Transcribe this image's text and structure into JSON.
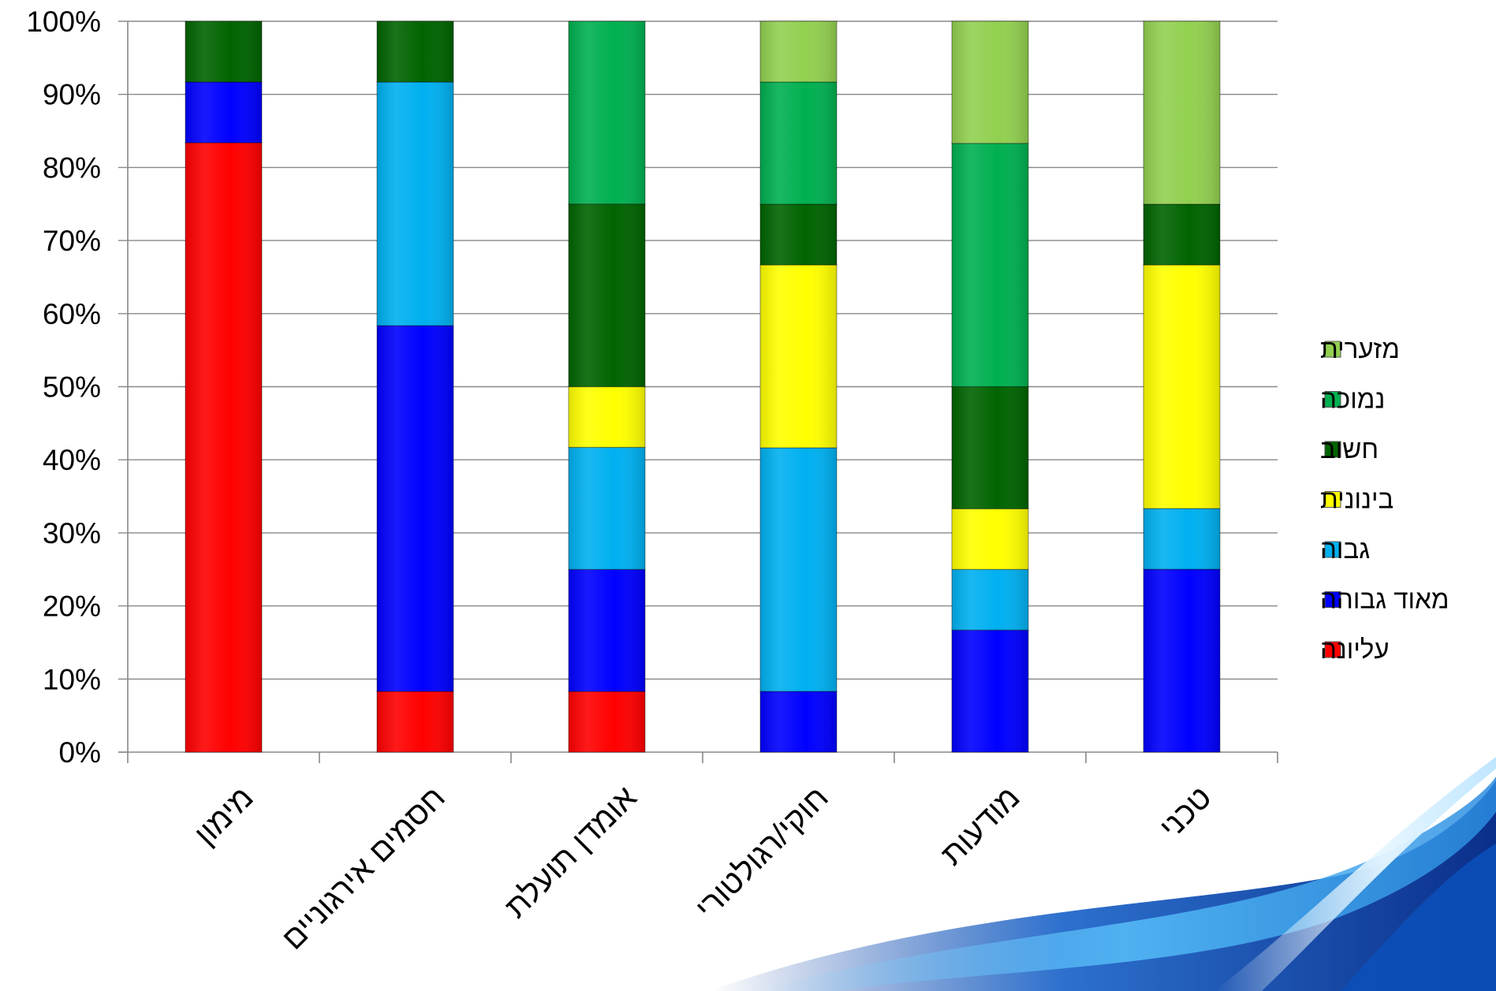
{
  "chart_data": {
    "type": "bar",
    "stacked": true,
    "percent_stacked": true,
    "categories": [
      "מימון",
      "חסמים אירגוניים",
      "אומדן תועלת",
      "חוקי/רגולטורי",
      "מודעות",
      "טכני"
    ],
    "series": [
      {
        "name": "עליונה",
        "color": "#FF0000",
        "values": [
          83.3,
          8.3,
          8.3,
          0,
          0,
          0
        ]
      },
      {
        "name": "מאוד גבוהה",
        "color": "#0000FF",
        "values": [
          8.3,
          50.0,
          16.7,
          8.3,
          16.7,
          25.0
        ]
      },
      {
        "name": "גבוה",
        "color": "#00B0F0",
        "values": [
          0,
          33.3,
          16.7,
          33.3,
          8.3,
          8.3
        ]
      },
      {
        "name": "בינונית",
        "color": "#FFFF00",
        "values": [
          0,
          0,
          8.3,
          25.0,
          8.3,
          33.3
        ]
      },
      {
        "name": "חשוב",
        "color": "#006400",
        "values": [
          8.3,
          8.3,
          25.0,
          8.3,
          16.7,
          8.3
        ]
      },
      {
        "name": "נמוכה",
        "color": "#00B050",
        "values": [
          0,
          0,
          25.0,
          16.7,
          33.3,
          0
        ]
      },
      {
        "name": "מזערית",
        "color": "#92D050",
        "values": [
          0,
          0,
          0,
          8.3,
          16.7,
          25.0
        ]
      }
    ],
    "y_ticks": [
      "0%",
      "10%",
      "20%",
      "30%",
      "40%",
      "50%",
      "60%",
      "70%",
      "80%",
      "90%",
      "100%"
    ],
    "ylim": [
      0,
      100
    ],
    "grid": true,
    "legend_position": "right",
    "title": "",
    "xlabel": "",
    "ylabel": ""
  }
}
